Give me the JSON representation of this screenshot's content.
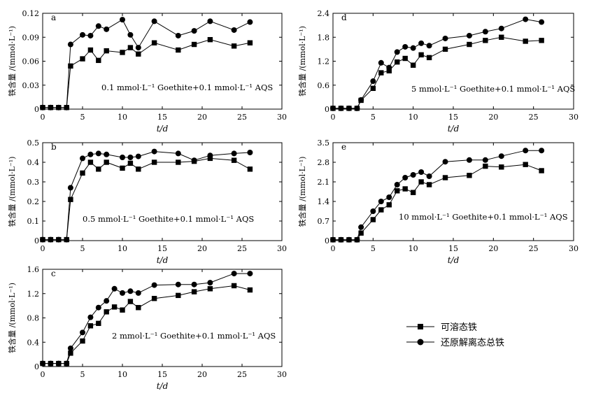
{
  "figure": {
    "legend": {
      "soluble_label": "可溶态铁",
      "total_label": "还原解离态总铁"
    },
    "colors": {
      "line": "#000000",
      "background": "#ffffff"
    }
  },
  "chart_data": [
    {
      "type": "line",
      "panel_label": "a",
      "annotation": "0.1 mmol·L⁻¹ Goethite+0.1 mmol·L⁻¹ AQS",
      "xlabel": "t/d",
      "ylabel": "铁含量 /(mmol·L⁻¹)",
      "xlim": [
        0,
        30
      ],
      "ylim": [
        0,
        0.12
      ],
      "xticks": [
        0,
        5,
        10,
        15,
        20,
        25,
        30
      ],
      "yticks": [
        0,
        0.03,
        0.06,
        0.09,
        0.12
      ],
      "ytick_labels": [
        "0",
        "0.03",
        "0.06",
        "0.09",
        "0.12"
      ],
      "series": [
        {
          "name": "可溶态铁",
          "marker": "square",
          "x": [
            0,
            1,
            2,
            3,
            3.5,
            5,
            6,
            7,
            8,
            10,
            11,
            12,
            14,
            17,
            19,
            21,
            24,
            26
          ],
          "y": [
            0.002,
            0.002,
            0.002,
            0.002,
            0.054,
            0.063,
            0.074,
            0.061,
            0.073,
            0.071,
            0.077,
            0.069,
            0.083,
            0.074,
            0.081,
            0.087,
            0.079,
            0.083
          ]
        },
        {
          "name": "还原解离态总铁",
          "marker": "circle",
          "x": [
            0,
            1,
            2,
            3,
            3.5,
            5,
            6,
            7,
            8,
            10,
            11,
            12,
            14,
            17,
            19,
            21,
            24,
            26
          ],
          "y": [
            0.002,
            0.002,
            0.002,
            0.002,
            0.081,
            0.093,
            0.092,
            0.104,
            0.1,
            0.112,
            0.093,
            0.077,
            0.11,
            0.092,
            0.098,
            0.11,
            0.099,
            0.109
          ]
        }
      ]
    },
    {
      "type": "line",
      "panel_label": "b",
      "annotation": "0.5 mmol·L⁻¹ Goethite+0.1 mmol·L⁻¹ AQS",
      "xlabel": "t/d",
      "ylabel": "铁含量 /(mmol·L⁻¹)",
      "xlim": [
        0,
        30
      ],
      "ylim": [
        0,
        0.5
      ],
      "xticks": [
        0,
        5,
        10,
        15,
        20,
        25,
        30
      ],
      "yticks": [
        0,
        0.1,
        0.2,
        0.3,
        0.4,
        0.5
      ],
      "ytick_labels": [
        "0",
        "0.1",
        "0.2",
        "0.3",
        "0.4",
        "0.5"
      ],
      "series": [
        {
          "name": "可溶态铁",
          "marker": "square",
          "x": [
            0,
            1,
            2,
            3,
            3.5,
            5,
            6,
            7,
            8,
            10,
            11,
            12,
            14,
            17,
            19,
            21,
            24,
            26
          ],
          "y": [
            0.005,
            0.005,
            0.005,
            0.005,
            0.21,
            0.345,
            0.4,
            0.365,
            0.4,
            0.37,
            0.395,
            0.365,
            0.4,
            0.4,
            0.405,
            0.42,
            0.41,
            0.365
          ]
        },
        {
          "name": "还原解离态总铁",
          "marker": "circle",
          "x": [
            0,
            1,
            2,
            3,
            3.5,
            5,
            6,
            7,
            8,
            10,
            11,
            12,
            14,
            17,
            19,
            21,
            24,
            26
          ],
          "y": [
            0.005,
            0.005,
            0.005,
            0.005,
            0.27,
            0.42,
            0.44,
            0.445,
            0.44,
            0.425,
            0.425,
            0.43,
            0.455,
            0.445,
            0.41,
            0.435,
            0.445,
            0.45
          ]
        }
      ]
    },
    {
      "type": "line",
      "panel_label": "c",
      "annotation": "2 mmol·L⁻¹ Goethite+0.1 mmol·L⁻¹ AQS",
      "xlabel": "t/d",
      "ylabel": "铁含量 /(mmol·L⁻¹)",
      "xlim": [
        0,
        30
      ],
      "ylim": [
        0,
        1.6
      ],
      "xticks": [
        0,
        5,
        10,
        15,
        20,
        25,
        30
      ],
      "yticks": [
        0,
        0.4,
        0.8,
        1.2,
        1.6
      ],
      "ytick_labels": [
        "0",
        "0.4",
        "0.8",
        "1.2",
        "1.6"
      ],
      "series": [
        {
          "name": "可溶态铁",
          "marker": "square",
          "x": [
            0,
            1,
            2,
            3,
            3.5,
            5,
            6,
            7,
            8,
            9,
            10,
            11,
            12,
            14,
            17,
            19,
            21,
            24,
            26
          ],
          "y": [
            0.05,
            0.05,
            0.05,
            0.05,
            0.22,
            0.42,
            0.67,
            0.71,
            0.9,
            0.98,
            0.93,
            1.07,
            0.97,
            1.12,
            1.17,
            1.23,
            1.28,
            1.33,
            1.26
          ]
        },
        {
          "name": "还原解离态总铁",
          "marker": "circle",
          "x": [
            0,
            1,
            2,
            3,
            3.5,
            5,
            6,
            7,
            8,
            9,
            10,
            11,
            12,
            14,
            17,
            19,
            21,
            24,
            26
          ],
          "y": [
            0.05,
            0.05,
            0.05,
            0.05,
            0.3,
            0.56,
            0.81,
            0.97,
            1.08,
            1.28,
            1.21,
            1.24,
            1.21,
            1.34,
            1.35,
            1.35,
            1.38,
            1.53,
            1.53
          ]
        }
      ]
    },
    {
      "type": "line",
      "panel_label": "d",
      "annotation": "5 mmol·L⁻¹ Goethite+0.1 mmol·L⁻¹ AQS",
      "xlabel": "t/d",
      "ylabel": "铁含量 /(mmol·L⁻¹)",
      "xlim": [
        0,
        30
      ],
      "ylim": [
        0,
        2.4
      ],
      "xticks": [
        0,
        5,
        10,
        15,
        20,
        25,
        30
      ],
      "yticks": [
        0,
        0.6,
        1.2,
        1.8,
        2.4
      ],
      "ytick_labels": [
        "0",
        "0.6",
        "1.2",
        "1.8",
        "2.4"
      ],
      "series": [
        {
          "name": "可溶态铁",
          "marker": "square",
          "x": [
            0,
            1,
            2,
            3,
            3.5,
            5,
            6,
            7,
            8,
            9,
            10,
            11,
            12,
            14,
            17,
            19,
            21,
            24,
            26
          ],
          "y": [
            0.02,
            0.02,
            0.02,
            0.02,
            0.22,
            0.52,
            0.91,
            0.96,
            1.18,
            1.27,
            1.1,
            1.36,
            1.29,
            1.5,
            1.62,
            1.72,
            1.8,
            1.7,
            1.72
          ]
        },
        {
          "name": "还原解离态总铁",
          "marker": "circle",
          "x": [
            0,
            1,
            2,
            3,
            3.5,
            5,
            6,
            7,
            8,
            9,
            10,
            11,
            12,
            14,
            17,
            19,
            21,
            24,
            26
          ],
          "y": [
            0.02,
            0.02,
            0.02,
            0.02,
            0.23,
            0.7,
            1.16,
            1.04,
            1.43,
            1.56,
            1.53,
            1.65,
            1.59,
            1.77,
            1.84,
            1.94,
            2.02,
            2.25,
            2.18
          ]
        }
      ]
    },
    {
      "type": "line",
      "panel_label": "e",
      "annotation": "10 mmol·L⁻¹ Goethite+0.1 mmol·L⁻¹ AQS",
      "xlabel": "t/d",
      "ylabel": "铁含量 /(mmol·L⁻¹)",
      "xlim": [
        0,
        30
      ],
      "ylim": [
        0,
        3.5
      ],
      "xticks": [
        0,
        5,
        10,
        15,
        20,
        25,
        30
      ],
      "yticks": [
        0,
        0.7,
        1.4,
        2.1,
        2.8,
        3.5
      ],
      "ytick_labels": [
        "0",
        "0.7",
        "1.4",
        "2.1",
        "2.8",
        "3.5"
      ],
      "series": [
        {
          "name": "可溶态铁",
          "marker": "square",
          "x": [
            0,
            1,
            2,
            3,
            3.5,
            5,
            6,
            7,
            8,
            9,
            10,
            11,
            12,
            14,
            17,
            19,
            21,
            24,
            26
          ],
          "y": [
            0.03,
            0.03,
            0.03,
            0.03,
            0.27,
            0.75,
            1.1,
            1.28,
            1.78,
            1.85,
            1.72,
            2.1,
            2.0,
            2.25,
            2.33,
            2.66,
            2.63,
            2.72,
            2.5
          ]
        },
        {
          "name": "还原解离态总铁",
          "marker": "circle",
          "x": [
            0,
            1,
            2,
            3,
            3.5,
            5,
            6,
            7,
            8,
            9,
            10,
            11,
            12,
            14,
            17,
            19,
            21,
            24,
            26
          ],
          "y": [
            0.03,
            0.03,
            0.03,
            0.03,
            0.48,
            1.05,
            1.4,
            1.55,
            2.0,
            2.25,
            2.35,
            2.45,
            2.3,
            2.82,
            2.88,
            2.88,
            3.02,
            3.22,
            3.22
          ]
        }
      ]
    }
  ]
}
